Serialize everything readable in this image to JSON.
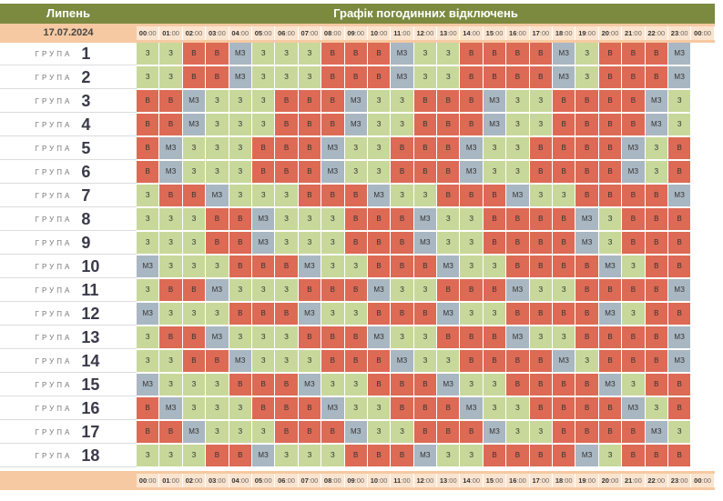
{
  "header": {
    "month": "Липень",
    "title": "Графік погодинних відключень"
  },
  "date": "17.07.2024",
  "hours": [
    "00",
    "01",
    "02",
    "03",
    "04",
    "05",
    "06",
    "07",
    "08",
    "09",
    "10",
    "11",
    "12",
    "13",
    "14",
    "15",
    "16",
    "17",
    "18",
    "19",
    "20",
    "21",
    "22",
    "23",
    "00"
  ],
  "hour_suffix": ":00",
  "group_word": "ГРУПА",
  "legend": {
    "z": "З",
    "v": "В",
    "m": "МЗ"
  },
  "colors": {
    "z": "#c8d89a",
    "v": "#dd6a55",
    "m": "#a9b7c2",
    "header": "#7b8a3f",
    "date_bar": "#f6c9a2"
  },
  "groups": [
    {
      "num": "1",
      "slots": [
        "З",
        "З",
        "В",
        "В",
        "МЗ",
        "З",
        "З",
        "З",
        "В",
        "В",
        "В",
        "МЗ",
        "З",
        "З",
        "В",
        "В",
        "В",
        "В",
        "МЗ",
        "З",
        "В",
        "В",
        "В",
        "МЗ"
      ]
    },
    {
      "num": "2",
      "slots": [
        "З",
        "З",
        "В",
        "В",
        "МЗ",
        "З",
        "З",
        "З",
        "В",
        "В",
        "В",
        "МЗ",
        "З",
        "З",
        "В",
        "В",
        "В",
        "В",
        "МЗ",
        "З",
        "В",
        "В",
        "В",
        "МЗ"
      ]
    },
    {
      "num": "3",
      "slots": [
        "В",
        "В",
        "МЗ",
        "З",
        "З",
        "З",
        "В",
        "В",
        "В",
        "МЗ",
        "З",
        "З",
        "В",
        "В",
        "В",
        "МЗ",
        "З",
        "З",
        "В",
        "В",
        "В",
        "В",
        "МЗ",
        "З"
      ]
    },
    {
      "num": "4",
      "slots": [
        "В",
        "В",
        "МЗ",
        "З",
        "З",
        "З",
        "В",
        "В",
        "В",
        "МЗ",
        "З",
        "З",
        "В",
        "В",
        "В",
        "МЗ",
        "З",
        "З",
        "В",
        "В",
        "В",
        "В",
        "МЗ",
        "З"
      ]
    },
    {
      "num": "5",
      "slots": [
        "В",
        "МЗ",
        "З",
        "З",
        "З",
        "В",
        "В",
        "В",
        "МЗ",
        "З",
        "З",
        "В",
        "В",
        "В",
        "МЗ",
        "З",
        "З",
        "В",
        "В",
        "В",
        "В",
        "МЗ",
        "З",
        "В"
      ]
    },
    {
      "num": "6",
      "slots": [
        "В",
        "МЗ",
        "З",
        "З",
        "З",
        "В",
        "В",
        "В",
        "МЗ",
        "З",
        "З",
        "В",
        "В",
        "В",
        "МЗ",
        "З",
        "З",
        "В",
        "В",
        "В",
        "В",
        "МЗ",
        "З",
        "В"
      ]
    },
    {
      "num": "7",
      "slots": [
        "З",
        "В",
        "В",
        "МЗ",
        "З",
        "З",
        "З",
        "В",
        "В",
        "В",
        "МЗ",
        "З",
        "З",
        "В",
        "В",
        "В",
        "МЗ",
        "З",
        "З",
        "В",
        "В",
        "В",
        "В",
        "МЗ"
      ]
    },
    {
      "num": "8",
      "slots": [
        "З",
        "З",
        "З",
        "В",
        "В",
        "МЗ",
        "З",
        "З",
        "З",
        "В",
        "В",
        "В",
        "МЗ",
        "З",
        "З",
        "В",
        "В",
        "В",
        "В",
        "МЗ",
        "З",
        "В",
        "В",
        "В"
      ]
    },
    {
      "num": "9",
      "slots": [
        "З",
        "З",
        "З",
        "В",
        "В",
        "МЗ",
        "З",
        "З",
        "З",
        "В",
        "В",
        "В",
        "МЗ",
        "З",
        "З",
        "В",
        "В",
        "В",
        "В",
        "МЗ",
        "З",
        "В",
        "В",
        "В"
      ]
    },
    {
      "num": "10",
      "slots": [
        "МЗ",
        "З",
        "З",
        "З",
        "В",
        "В",
        "В",
        "МЗ",
        "З",
        "З",
        "В",
        "В",
        "В",
        "МЗ",
        "З",
        "З",
        "В",
        "В",
        "В",
        "В",
        "МЗ",
        "З",
        "В",
        "В"
      ]
    },
    {
      "num": "11",
      "slots": [
        "З",
        "В",
        "В",
        "МЗ",
        "З",
        "З",
        "З",
        "В",
        "В",
        "В",
        "МЗ",
        "З",
        "З",
        "В",
        "В",
        "В",
        "МЗ",
        "З",
        "З",
        "В",
        "В",
        "В",
        "В",
        "МЗ"
      ]
    },
    {
      "num": "12",
      "slots": [
        "МЗ",
        "З",
        "З",
        "З",
        "В",
        "В",
        "В",
        "МЗ",
        "З",
        "З",
        "В",
        "В",
        "В",
        "МЗ",
        "З",
        "З",
        "В",
        "В",
        "В",
        "В",
        "МЗ",
        "З",
        "В",
        "В"
      ]
    },
    {
      "num": "13",
      "slots": [
        "З",
        "В",
        "В",
        "МЗ",
        "З",
        "З",
        "З",
        "В",
        "В",
        "В",
        "МЗ",
        "З",
        "З",
        "В",
        "В",
        "В",
        "МЗ",
        "З",
        "З",
        "В",
        "В",
        "В",
        "В",
        "МЗ"
      ]
    },
    {
      "num": "14",
      "slots": [
        "З",
        "З",
        "В",
        "В",
        "МЗ",
        "З",
        "З",
        "З",
        "В",
        "В",
        "В",
        "МЗ",
        "З",
        "З",
        "В",
        "В",
        "В",
        "В",
        "МЗ",
        "З",
        "В",
        "В",
        "В",
        "МЗ"
      ]
    },
    {
      "num": "15",
      "slots": [
        "МЗ",
        "З",
        "З",
        "З",
        "В",
        "В",
        "В",
        "МЗ",
        "З",
        "З",
        "В",
        "В",
        "В",
        "МЗ",
        "З",
        "З",
        "В",
        "В",
        "В",
        "В",
        "МЗ",
        "З",
        "В",
        "В"
      ]
    },
    {
      "num": "16",
      "slots": [
        "В",
        "МЗ",
        "З",
        "З",
        "З",
        "В",
        "В",
        "В",
        "МЗ",
        "З",
        "З",
        "В",
        "В",
        "В",
        "МЗ",
        "З",
        "З",
        "В",
        "В",
        "В",
        "В",
        "МЗ",
        "З",
        "В"
      ]
    },
    {
      "num": "17",
      "slots": [
        "В",
        "В",
        "МЗ",
        "З",
        "З",
        "З",
        "В",
        "В",
        "В",
        "МЗ",
        "З",
        "З",
        "В",
        "В",
        "В",
        "МЗ",
        "З",
        "З",
        "В",
        "В",
        "В",
        "В",
        "МЗ",
        "З"
      ]
    },
    {
      "num": "18",
      "slots": [
        "З",
        "З",
        "З",
        "В",
        "В",
        "МЗ",
        "З",
        "З",
        "З",
        "В",
        "В",
        "В",
        "МЗ",
        "З",
        "З",
        "В",
        "В",
        "В",
        "В",
        "МЗ",
        "З",
        "В",
        "В",
        "В"
      ]
    }
  ]
}
